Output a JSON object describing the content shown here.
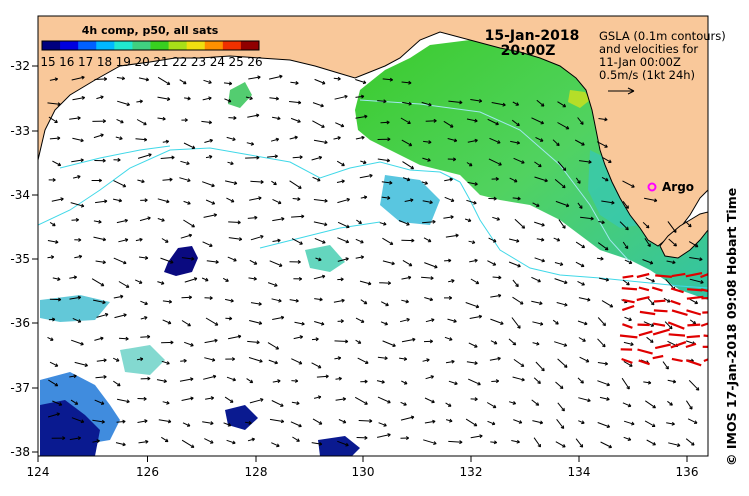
{
  "header": {
    "date": "15-Jan-2018",
    "time": "20:00Z"
  },
  "colorbar": {
    "title": "4h comp, p50, all sats",
    "labels": [
      "15",
      "16",
      "17",
      "18",
      "19",
      "20",
      "21",
      "22",
      "23",
      "24",
      "25",
      "26"
    ],
    "colors": [
      "#00007f",
      "#0000e0",
      "#0060ff",
      "#00b8ff",
      "#20e8d0",
      "#40d080",
      "#38d020",
      "#a8e018",
      "#f0e010",
      "#ff9000",
      "#f03000",
      "#900000"
    ]
  },
  "legend": {
    "line1": "GSLA (0.1m contours)",
    "line2": "and velocities for",
    "line3": "11-Jan 00:00Z",
    "line4": "0.5m/s (1kt 24h)"
  },
  "argo": {
    "label": "Argo",
    "color": "#ff00ff"
  },
  "credit": "© IMOS 17-Jan-2018 09:08 Hobart Time",
  "axes": {
    "x_ticks": [
      "124",
      "126",
      "128",
      "130",
      "132",
      "134",
      "136"
    ],
    "y_ticks": [
      "-32",
      "-33",
      "-34",
      "-35",
      "-36",
      "-37",
      "-38"
    ]
  },
  "colors": {
    "land": "#f9c89a",
    "ocean": "#ffffff",
    "contour": "#40d8e8",
    "arrow": "#000000",
    "red_arrow": "#e00000"
  }
}
